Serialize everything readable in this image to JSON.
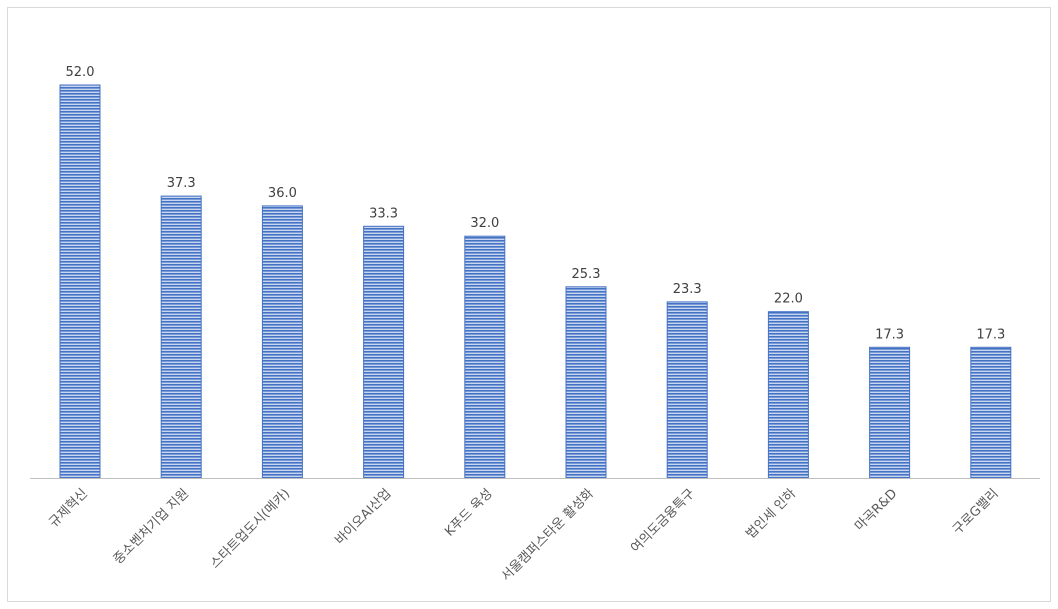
{
  "chart_data": {
    "type": "bar",
    "categories": [
      "규제혁신",
      "중소벤처기업 지원",
      "스타트업도시(메카)",
      "바이오AI산업",
      "K푸드 육성",
      "서울캠퍼스타운 활성화",
      "여의도금융특구",
      "법인세 인하",
      "마곡R&D",
      "구로G밸리"
    ],
    "values": [
      52.0,
      37.3,
      36.0,
      33.3,
      32.0,
      25.3,
      23.3,
      22.0,
      17.3,
      17.3
    ],
    "value_labels": [
      "52.0",
      "37.3",
      "36.0",
      "33.3",
      "32.0",
      "25.3",
      "23.3",
      "22.0",
      "17.3",
      "17.3"
    ],
    "ylim": [
      0,
      52.0
    ],
    "grid": false,
    "legend": "none",
    "bar_color": "#4472c4",
    "bar_pattern": "horizontal-stripes"
  }
}
